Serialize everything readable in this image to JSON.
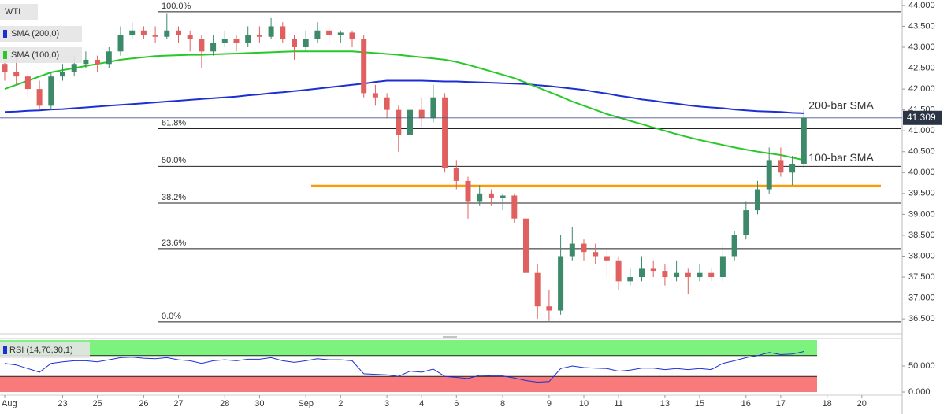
{
  "chart_data": {
    "type": "candlestick",
    "title": "WTI",
    "categories": [
      "Aug",
      null,
      null,
      null,
      null,
      "23",
      null,
      null,
      "25",
      null,
      null,
      null,
      "26",
      null,
      null,
      "27",
      null,
      null,
      null,
      "28",
      null,
      null,
      "30",
      null,
      null,
      null,
      "Sep",
      null,
      null,
      "2",
      null,
      null,
      null,
      "3",
      null,
      null,
      "4",
      null,
      null,
      "6",
      null,
      null,
      null,
      "8",
      null,
      null,
      null,
      "9",
      null,
      null,
      "10",
      null,
      null,
      "11",
      null,
      null,
      null,
      "13",
      null,
      null,
      "15",
      null,
      null,
      null,
      "16",
      null,
      null,
      "17",
      null,
      null,
      null,
      "18",
      null,
      null,
      "20"
    ],
    "ohlc": [
      [
        42.6,
        42.7,
        42.2,
        42.4
      ],
      [
        42.4,
        42.8,
        42.1,
        42.3
      ],
      [
        42.3,
        42.4,
        41.8,
        42.0
      ],
      [
        42.0,
        42.2,
        41.5,
        41.6
      ],
      [
        41.6,
        42.4,
        41.5,
        42.3
      ],
      [
        42.3,
        42.6,
        42.2,
        42.4
      ],
      [
        42.4,
        42.8,
        42.3,
        42.6
      ],
      [
        42.6,
        42.9,
        42.5,
        42.7
      ],
      [
        42.7,
        42.8,
        42.4,
        42.6
      ],
      [
        42.6,
        43.0,
        42.5,
        42.9
      ],
      [
        42.9,
        43.5,
        42.8,
        43.3
      ],
      [
        43.3,
        43.6,
        43.2,
        43.4
      ],
      [
        43.4,
        43.5,
        43.2,
        43.3
      ],
      [
        43.3,
        43.5,
        43.1,
        43.25
      ],
      [
        43.25,
        43.8,
        43.2,
        43.4
      ],
      [
        43.4,
        43.5,
        43.1,
        43.3
      ],
      [
        43.3,
        43.4,
        42.9,
        43.2
      ],
      [
        43.2,
        43.3,
        42.5,
        42.9
      ],
      [
        42.9,
        43.3,
        42.8,
        43.1
      ],
      [
        43.1,
        43.4,
        43.0,
        43.2
      ],
      [
        43.2,
        43.3,
        42.9,
        43.1
      ],
      [
        43.1,
        43.5,
        43.0,
        43.3
      ],
      [
        43.3,
        43.5,
        43.1,
        43.25
      ],
      [
        43.25,
        43.7,
        43.2,
        43.5
      ],
      [
        43.5,
        43.6,
        43.1,
        43.2
      ],
      [
        43.2,
        43.3,
        42.7,
        43.0
      ],
      [
        43.0,
        43.4,
        42.9,
        43.2
      ],
      [
        43.2,
        43.6,
        43.1,
        43.4
      ],
      [
        43.4,
        43.5,
        43.1,
        43.3
      ],
      [
        43.3,
        43.4,
        43.1,
        43.35
      ],
      [
        43.35,
        43.4,
        43.0,
        43.2
      ],
      [
        43.2,
        43.3,
        41.8,
        41.9
      ],
      [
        41.9,
        42.1,
        41.6,
        41.8
      ],
      [
        41.8,
        41.9,
        41.3,
        41.5
      ],
      [
        41.5,
        41.6,
        40.5,
        40.9
      ],
      [
        40.9,
        41.7,
        40.8,
        41.5
      ],
      [
        41.5,
        41.8,
        41.1,
        41.3
      ],
      [
        41.3,
        42.1,
        41.2,
        41.8
      ],
      [
        41.8,
        41.9,
        40.0,
        40.1
      ],
      [
        40.1,
        40.3,
        39.6,
        39.8
      ],
      [
        39.8,
        39.9,
        38.9,
        39.3
      ],
      [
        39.3,
        39.7,
        39.2,
        39.5
      ],
      [
        39.5,
        39.6,
        39.2,
        39.4
      ],
      [
        39.4,
        39.5,
        39.1,
        39.45
      ],
      [
        39.45,
        39.5,
        38.8,
        38.9
      ],
      [
        38.9,
        39.0,
        37.4,
        37.6
      ],
      [
        37.6,
        37.8,
        36.5,
        36.8
      ],
      [
        36.8,
        37.2,
        36.45,
        36.7
      ],
      [
        36.7,
        38.5,
        36.6,
        38.0
      ],
      [
        38.0,
        38.7,
        37.9,
        38.3
      ],
      [
        38.3,
        38.4,
        37.9,
        38.1
      ],
      [
        38.1,
        38.3,
        37.8,
        38.0
      ],
      [
        38.0,
        38.2,
        37.5,
        37.9
      ],
      [
        37.9,
        38.0,
        37.2,
        37.4
      ],
      [
        37.4,
        37.7,
        37.3,
        37.5
      ],
      [
        37.5,
        38.0,
        37.4,
        37.7
      ],
      [
        37.7,
        37.9,
        37.5,
        37.65
      ],
      [
        37.65,
        37.8,
        37.3,
        37.5
      ],
      [
        37.5,
        37.9,
        37.4,
        37.6
      ],
      [
        37.6,
        37.7,
        37.1,
        37.5
      ],
      [
        37.5,
        37.8,
        37.4,
        37.6
      ],
      [
        37.6,
        37.7,
        37.4,
        37.5
      ],
      [
        37.5,
        38.3,
        37.4,
        38.0
      ],
      [
        38.0,
        38.6,
        37.9,
        38.5
      ],
      [
        38.5,
        39.3,
        38.4,
        39.1
      ],
      [
        39.1,
        39.8,
        39.0,
        39.6
      ],
      [
        39.6,
        40.6,
        39.5,
        40.3
      ],
      [
        40.3,
        40.6,
        39.9,
        40.0
      ],
      [
        40.0,
        40.4,
        39.7,
        40.2
      ],
      [
        40.2,
        41.5,
        40.1,
        41.309
      ],
      null,
      null,
      null,
      null,
      null
    ],
    "up_color": "#3d8a6a",
    "down_color": "#e06060",
    "series": [
      {
        "name": "SMA (200,0)",
        "color": "#1c2fd4",
        "label": "200-bar SMA",
        "label_color": "#6b7de0",
        "values": [
          41.45,
          41.46,
          41.48,
          41.49,
          41.51,
          41.52,
          41.54,
          41.56,
          41.58,
          41.6,
          41.62,
          41.64,
          41.66,
          41.68,
          41.7,
          41.72,
          41.74,
          41.76,
          41.78,
          41.8,
          41.82,
          41.85,
          41.87,
          41.9,
          41.92,
          41.95,
          41.98,
          42.01,
          42.04,
          42.07,
          42.1,
          42.13,
          42.17,
          42.2,
          42.2,
          42.2,
          42.2,
          42.19,
          42.18,
          42.18,
          42.17,
          42.16,
          42.15,
          42.14,
          42.13,
          42.12,
          42.09,
          42.07,
          42.04,
          42.01,
          41.98,
          41.93,
          41.89,
          41.84,
          41.8,
          41.75,
          41.72,
          41.68,
          41.65,
          41.61,
          41.58,
          41.56,
          41.54,
          41.51,
          41.49,
          41.47,
          41.46,
          41.45,
          41.43,
          41.42,
          null,
          null,
          null,
          null,
          null
        ]
      },
      {
        "name": "SMA (100,0)",
        "color": "#28c828",
        "label": "100-bar SMA",
        "label_color": "#28b428",
        "values": [
          42.0,
          42.1,
          42.2,
          42.3,
          42.4,
          42.45,
          42.5,
          42.55,
          42.6,
          42.65,
          42.7,
          42.73,
          42.76,
          42.79,
          42.8,
          42.81,
          42.82,
          42.82,
          42.83,
          42.84,
          42.85,
          42.86,
          42.87,
          42.88,
          42.89,
          42.9,
          42.9,
          42.9,
          42.9,
          42.9,
          42.9,
          42.88,
          42.86,
          42.84,
          42.82,
          42.79,
          42.76,
          42.73,
          42.7,
          42.65,
          42.58,
          42.5,
          42.42,
          42.34,
          42.26,
          42.15,
          42.04,
          41.93,
          41.82,
          41.7,
          41.6,
          41.5,
          41.4,
          41.32,
          41.24,
          41.16,
          41.08,
          41.0,
          40.92,
          40.85,
          40.78,
          40.72,
          40.66,
          40.6,
          40.55,
          40.5,
          40.46,
          40.42,
          40.36,
          40.3,
          null,
          null,
          null,
          null,
          null
        ]
      }
    ],
    "fib_levels": [
      {
        "label": "100.0%",
        "value": 43.85
      },
      {
        "label": "61.8%",
        "value": 41.05
      },
      {
        "label": "50.0%",
        "value": 40.15
      },
      {
        "label": "38.2%",
        "value": 39.27
      },
      {
        "label": "23.6%",
        "value": 38.18
      },
      {
        "label": "0.0%",
        "value": 36.43
      }
    ],
    "support": {
      "value": 39.68,
      "color": "#ff9a00"
    },
    "ylim": [
      36.22,
      44.13
    ],
    "yticks": [
      {
        "value": 44,
        "label": "44.000"
      },
      {
        "value": 43.5,
        "label": "43.500"
      },
      {
        "value": 43,
        "label": "43.000"
      },
      {
        "value": 42.5,
        "label": "42.500"
      },
      {
        "value": 42,
        "label": "42.000"
      },
      {
        "value": 41.5,
        "label": "41.500"
      },
      {
        "value": 41,
        "label": "41.000"
      },
      {
        "value": 40.5,
        "label": "40.500"
      },
      {
        "value": 40,
        "label": "40.000"
      },
      {
        "value": 39.5,
        "label": "39.500"
      },
      {
        "value": 39,
        "label": "39.000"
      },
      {
        "value": 38.5,
        "label": "38.500"
      },
      {
        "value": 38,
        "label": "38.000"
      },
      {
        "value": 37.5,
        "label": "37.500"
      },
      {
        "value": 37,
        "label": "37.000"
      },
      {
        "value": 36.5,
        "label": "36.500"
      }
    ],
    "rsi": {
      "name": "RSI (14,70,30,1)",
      "color": "#1c2fd4",
      "overbought": 70,
      "oversold": 30,
      "overbought_color": "#7ef27e",
      "oversold_color": "#f87a7a",
      "ylim": [
        -3,
        100
      ],
      "yticks": [
        {
          "value": 50,
          "label": "50.000"
        },
        {
          "value": 0,
          "label": "0.000"
        }
      ],
      "values": [
        55,
        52,
        45,
        38,
        55,
        58,
        60,
        60,
        58,
        62,
        66,
        67,
        65,
        64,
        66,
        62,
        60,
        55,
        60,
        62,
        60,
        63,
        63,
        66,
        60,
        57,
        60,
        64,
        62,
        62,
        60,
        35,
        34,
        33,
        30,
        40,
        38,
        44,
        30,
        28,
        26,
        32,
        31,
        31,
        27,
        22,
        19,
        20,
        45,
        50,
        47,
        46,
        45,
        40,
        42,
        46,
        46,
        43,
        45,
        43,
        45,
        43,
        55,
        60,
        66,
        70,
        76,
        72,
        73,
        78,
        null,
        null,
        null,
        null,
        null
      ]
    }
  }
}
